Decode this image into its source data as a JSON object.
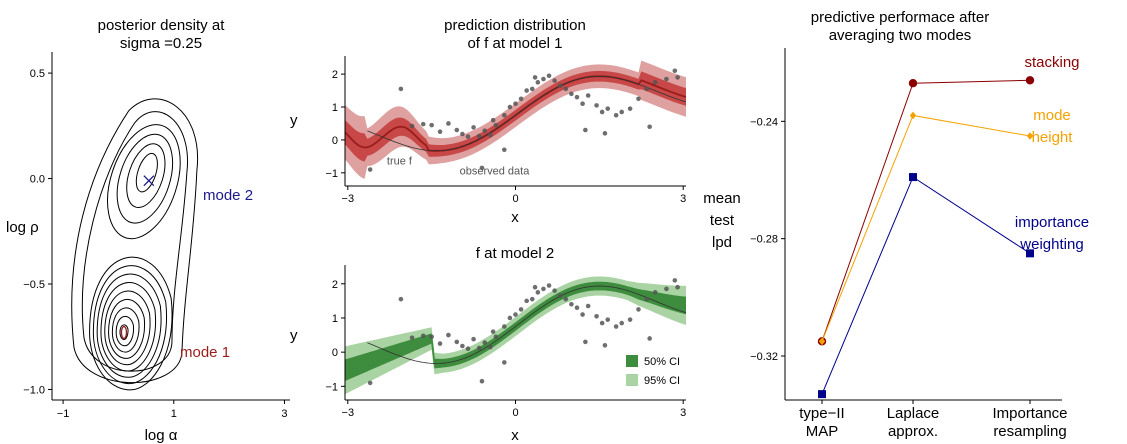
{
  "colors": {
    "mode1": "#9b1c1c",
    "mode2": "#1a1a8c",
    "red_ci50": "#c84848",
    "red_ci95": "#dfa0a0",
    "green_ci50": "#3e8c3e",
    "green_ci95": "#a9d3a3",
    "stacking": "#8b0000",
    "mode_height": "#f5a200",
    "importance_weighting": "#00008b",
    "points": "#555555"
  },
  "chart_data": [
    {
      "type": "contour",
      "title_line1": "posterior density at",
      "title_line2": "sigma =0.25",
      "xlabel": "log α",
      "ylabel": "log ρ",
      "xlim": [
        -1.2,
        3.1
      ],
      "ylim": [
        -1.05,
        0.6
      ],
      "xticks": [
        -1,
        1,
        3
      ],
      "xtick_labels": [
        "−1",
        "1",
        "3"
      ],
      "yticks": [
        0.5,
        0.0,
        -0.5,
        -1.0
      ],
      "ytick_labels": [
        "0.5",
        "0.0",
        "−0.5",
        "−1.0"
      ],
      "modes": [
        {
          "label": "mode 1",
          "x": 0.1,
          "y": -0.73,
          "color": "mode1"
        },
        {
          "label": "mode 2",
          "x": 0.55,
          "y": -0.01,
          "color": "mode2"
        }
      ]
    },
    {
      "type": "line",
      "title_line1": "prediction distribution",
      "title_line2": "of f at model 1",
      "xlabel": "x",
      "ylabel": "y",
      "xlim": [
        -3.05,
        3.05
      ],
      "ylim": [
        -1.4,
        2.55
      ],
      "xticks": [
        -3,
        0,
        3
      ],
      "xtick_labels": [
        "−3",
        "0",
        "3"
      ],
      "yticks": [
        -1,
        0,
        1,
        2
      ],
      "ytick_labels": [
        "−1",
        "0",
        "1",
        "2"
      ],
      "ci_colors": [
        "red_ci95",
        "red_ci50"
      ],
      "line_color": "mode1",
      "annotations": [
        {
          "text": "true f",
          "x": -2.3,
          "y": -0.75
        },
        {
          "text": "observed data",
          "x": -1.0,
          "y": -1.05
        }
      ]
    },
    {
      "type": "line",
      "title": "f at model 2",
      "xlabel": "x",
      "ylabel": "y",
      "xlim": [
        -3.05,
        3.05
      ],
      "ylim": [
        -1.4,
        2.55
      ],
      "xticks": [
        -3,
        0,
        3
      ],
      "xtick_labels": [
        "−3",
        "0",
        "3"
      ],
      "yticks": [
        -1,
        0,
        1,
        2
      ],
      "ytick_labels": [
        "−1",
        "0",
        "1",
        "2"
      ],
      "ci_colors": [
        "green_ci95",
        "green_ci50"
      ],
      "line_color": "green_ci50",
      "legend": [
        {
          "label": "50% CI",
          "color": "green_ci50"
        },
        {
          "label": "95% CI",
          "color": "green_ci95"
        }
      ],
      "legend_position": "bottom-right"
    },
    {
      "type": "line",
      "title_line1": "predictive performace  after",
      "title_line2": "averaging two modes",
      "ylabel_lines": [
        "mean",
        "test",
        "lpd"
      ],
      "categories": [
        [
          "type−II",
          "MAP"
        ],
        [
          "Laplace",
          "approx."
        ],
        [
          "Importance",
          "resampling"
        ]
      ],
      "ylim": [
        -0.335,
        -0.215
      ],
      "yticks": [
        -0.24,
        -0.28,
        -0.32
      ],
      "ytick_labels": [
        "−0.24",
        "−0.28",
        "−0.32"
      ],
      "series": [
        {
          "name": "stacking",
          "label_lines": [
            "stacking"
          ],
          "values": [
            -0.315,
            -0.227,
            -0.226
          ],
          "color": "stacking",
          "marker": "circle"
        },
        {
          "name": "mode height",
          "label_lines": [
            "mode",
            "height"
          ],
          "values": [
            -0.315,
            -0.238,
            -0.245
          ],
          "color": "mode_height",
          "marker": "diamond"
        },
        {
          "name": "importance weighting",
          "label_lines": [
            "importance",
            "weighting"
          ],
          "values": [
            -0.333,
            -0.259,
            -0.285
          ],
          "color": "importance_weighting",
          "marker": "square"
        }
      ]
    }
  ]
}
